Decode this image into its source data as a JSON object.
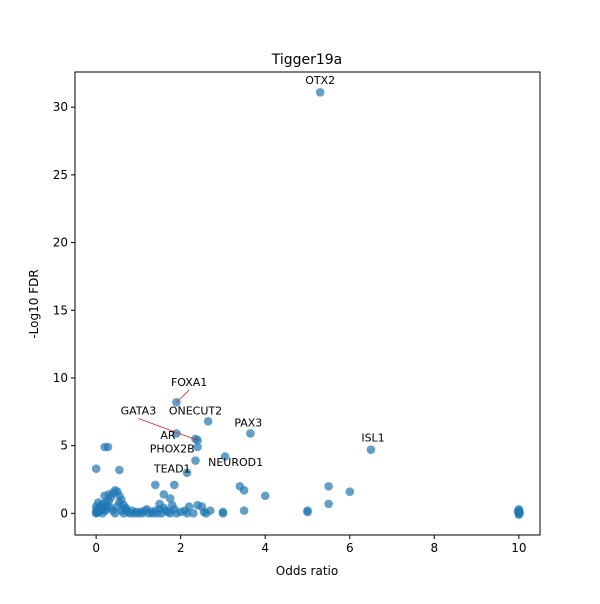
{
  "chart_data": {
    "type": "scatter",
    "title": "Tigger19a",
    "xlabel": "Odds ratio",
    "ylabel": "-Log10 FDR",
    "xlim": [
      -0.5,
      10.5
    ],
    "ylim": [
      -1.6,
      32.6
    ],
    "xticks": [
      0,
      2,
      4,
      6,
      8,
      10
    ],
    "yticks": [
      0,
      5,
      10,
      15,
      20,
      25,
      30
    ],
    "grid": false,
    "point_color": "#1f77b4",
    "label_line_color": "#d62728",
    "points": [
      [
        0.0,
        0.0
      ],
      [
        0.02,
        0.05
      ],
      [
        0.05,
        0.1
      ],
      [
        0.0,
        0.15
      ],
      [
        0.03,
        0.3
      ],
      [
        0.0,
        0.5
      ],
      [
        0.05,
        0.8
      ],
      [
        0.0,
        3.3
      ],
      [
        0.1,
        0.2
      ],
      [
        0.15,
        0.0
      ],
      [
        0.2,
        0.3
      ],
      [
        0.25,
        0.5
      ],
      [
        0.3,
        0.9
      ],
      [
        0.35,
        1.2
      ],
      [
        0.4,
        1.5
      ],
      [
        0.45,
        1.7
      ],
      [
        0.5,
        1.6
      ],
      [
        0.55,
        1.3
      ],
      [
        0.6,
        1.0
      ],
      [
        0.65,
        0.6
      ],
      [
        0.7,
        0.3
      ],
      [
        0.75,
        0.1
      ],
      [
        0.8,
        0.0
      ],
      [
        0.2,
        1.3
      ],
      [
        0.3,
        1.4
      ],
      [
        0.35,
        0.4
      ],
      [
        0.4,
        0.2
      ],
      [
        0.45,
        0.0
      ],
      [
        0.5,
        0.5
      ],
      [
        0.55,
        0.8
      ],
      [
        0.6,
        0.2
      ],
      [
        0.65,
        0.0
      ],
      [
        0.7,
        0.4
      ],
      [
        0.85,
        0.2
      ],
      [
        0.9,
        0.0
      ],
      [
        0.95,
        0.1
      ],
      [
        1.0,
        0.0
      ],
      [
        1.05,
        0.1
      ],
      [
        1.1,
        0.0
      ],
      [
        1.15,
        0.2
      ],
      [
        1.2,
        0.3
      ],
      [
        1.25,
        0.0
      ],
      [
        1.3,
        0.1
      ],
      [
        1.35,
        0.0
      ],
      [
        1.4,
        0.2
      ],
      [
        1.45,
        0.0
      ],
      [
        1.5,
        0.3
      ],
      [
        1.55,
        0.0
      ],
      [
        1.6,
        0.4
      ],
      [
        1.65,
        0.2
      ],
      [
        1.7,
        0.1
      ],
      [
        1.75,
        0.0
      ],
      [
        1.8,
        0.6
      ],
      [
        1.85,
        0.3
      ],
      [
        1.9,
        0.0
      ],
      [
        2.0,
        0.1
      ],
      [
        2.1,
        0.2
      ],
      [
        2.15,
        0.0
      ],
      [
        2.2,
        0.5
      ],
      [
        2.3,
        0.0
      ],
      [
        2.4,
        0.6
      ],
      [
        2.5,
        0.5
      ],
      [
        2.55,
        0.1
      ],
      [
        2.6,
        0.0
      ],
      [
        2.7,
        0.2
      ],
      [
        3.0,
        0.0
      ],
      [
        3.0,
        0.1
      ],
      [
        3.5,
        0.2
      ],
      [
        5.0,
        0.1
      ],
      [
        5.0,
        0.2
      ],
      [
        5.5,
        0.7
      ],
      [
        5.5,
        2.0
      ],
      [
        6.0,
        1.6
      ],
      [
        4.0,
        1.3
      ],
      [
        3.5,
        1.7
      ],
      [
        3.4,
        2.0
      ],
      [
        3.05,
        4.2
      ],
      [
        2.65,
        6.8
      ],
      [
        1.4,
        2.1
      ],
      [
        1.85,
        2.1
      ],
      [
        1.6,
        1.4
      ],
      [
        1.75,
        1.1
      ],
      [
        1.5,
        0.7
      ],
      [
        0.2,
        4.9
      ],
      [
        0.28,
        4.9
      ],
      [
        0.55,
        3.2
      ],
      [
        10.0,
        0.0
      ],
      [
        10.0,
        0.1
      ],
      [
        10.0,
        0.2
      ],
      [
        10.0,
        0.3
      ],
      [
        10.0,
        -0.1
      ],
      [
        9.98,
        0.15
      ],
      [
        10.02,
        0.05
      ],
      [
        0.1,
        0.5
      ],
      [
        0.15,
        0.7
      ],
      [
        0.25,
        0.9
      ],
      [
        0.12,
        0.4
      ],
      [
        0.18,
        0.6
      ],
      [
        0.22,
        0.2
      ],
      [
        0.08,
        0.3
      ]
    ],
    "labeled_points": [
      {
        "label": "OTX2",
        "x": 5.3,
        "y": 31.1,
        "lx": 5.3,
        "ly": 31.7,
        "line": false
      },
      {
        "label": "FOXA1",
        "x": 1.9,
        "y": 8.2,
        "lx": 2.2,
        "ly": 9.4,
        "line": true
      },
      {
        "label": "ONECUT2",
        "x": 2.35,
        "y": 5.5,
        "lx": 2.35,
        "ly": 7.3,
        "line": false
      },
      {
        "label": "GATA3",
        "x": 2.4,
        "y": 5.4,
        "lx": 1.0,
        "ly": 7.3,
        "line": true
      },
      {
        "label": "PAX3",
        "x": 3.65,
        "y": 5.9,
        "lx": 3.6,
        "ly": 6.4,
        "line": false
      },
      {
        "label": "AR",
        "x": 1.9,
        "y": 5.9,
        "lx": 1.7,
        "ly": 5.5,
        "line": false
      },
      {
        "label": "ISL1",
        "x": 6.5,
        "y": 4.7,
        "lx": 6.55,
        "ly": 5.3,
        "line": false
      },
      {
        "label": "PHOX2B",
        "x": 2.4,
        "y": 4.9,
        "lx": 1.8,
        "ly": 4.5,
        "line": false
      },
      {
        "label": "NEUROD1",
        "x": 2.35,
        "y": 3.9,
        "lx": 3.3,
        "ly": 3.5,
        "line": false
      },
      {
        "label": "TEAD1",
        "x": 2.15,
        "y": 3.0,
        "lx": 1.8,
        "ly": 3.0,
        "line": false
      }
    ]
  }
}
